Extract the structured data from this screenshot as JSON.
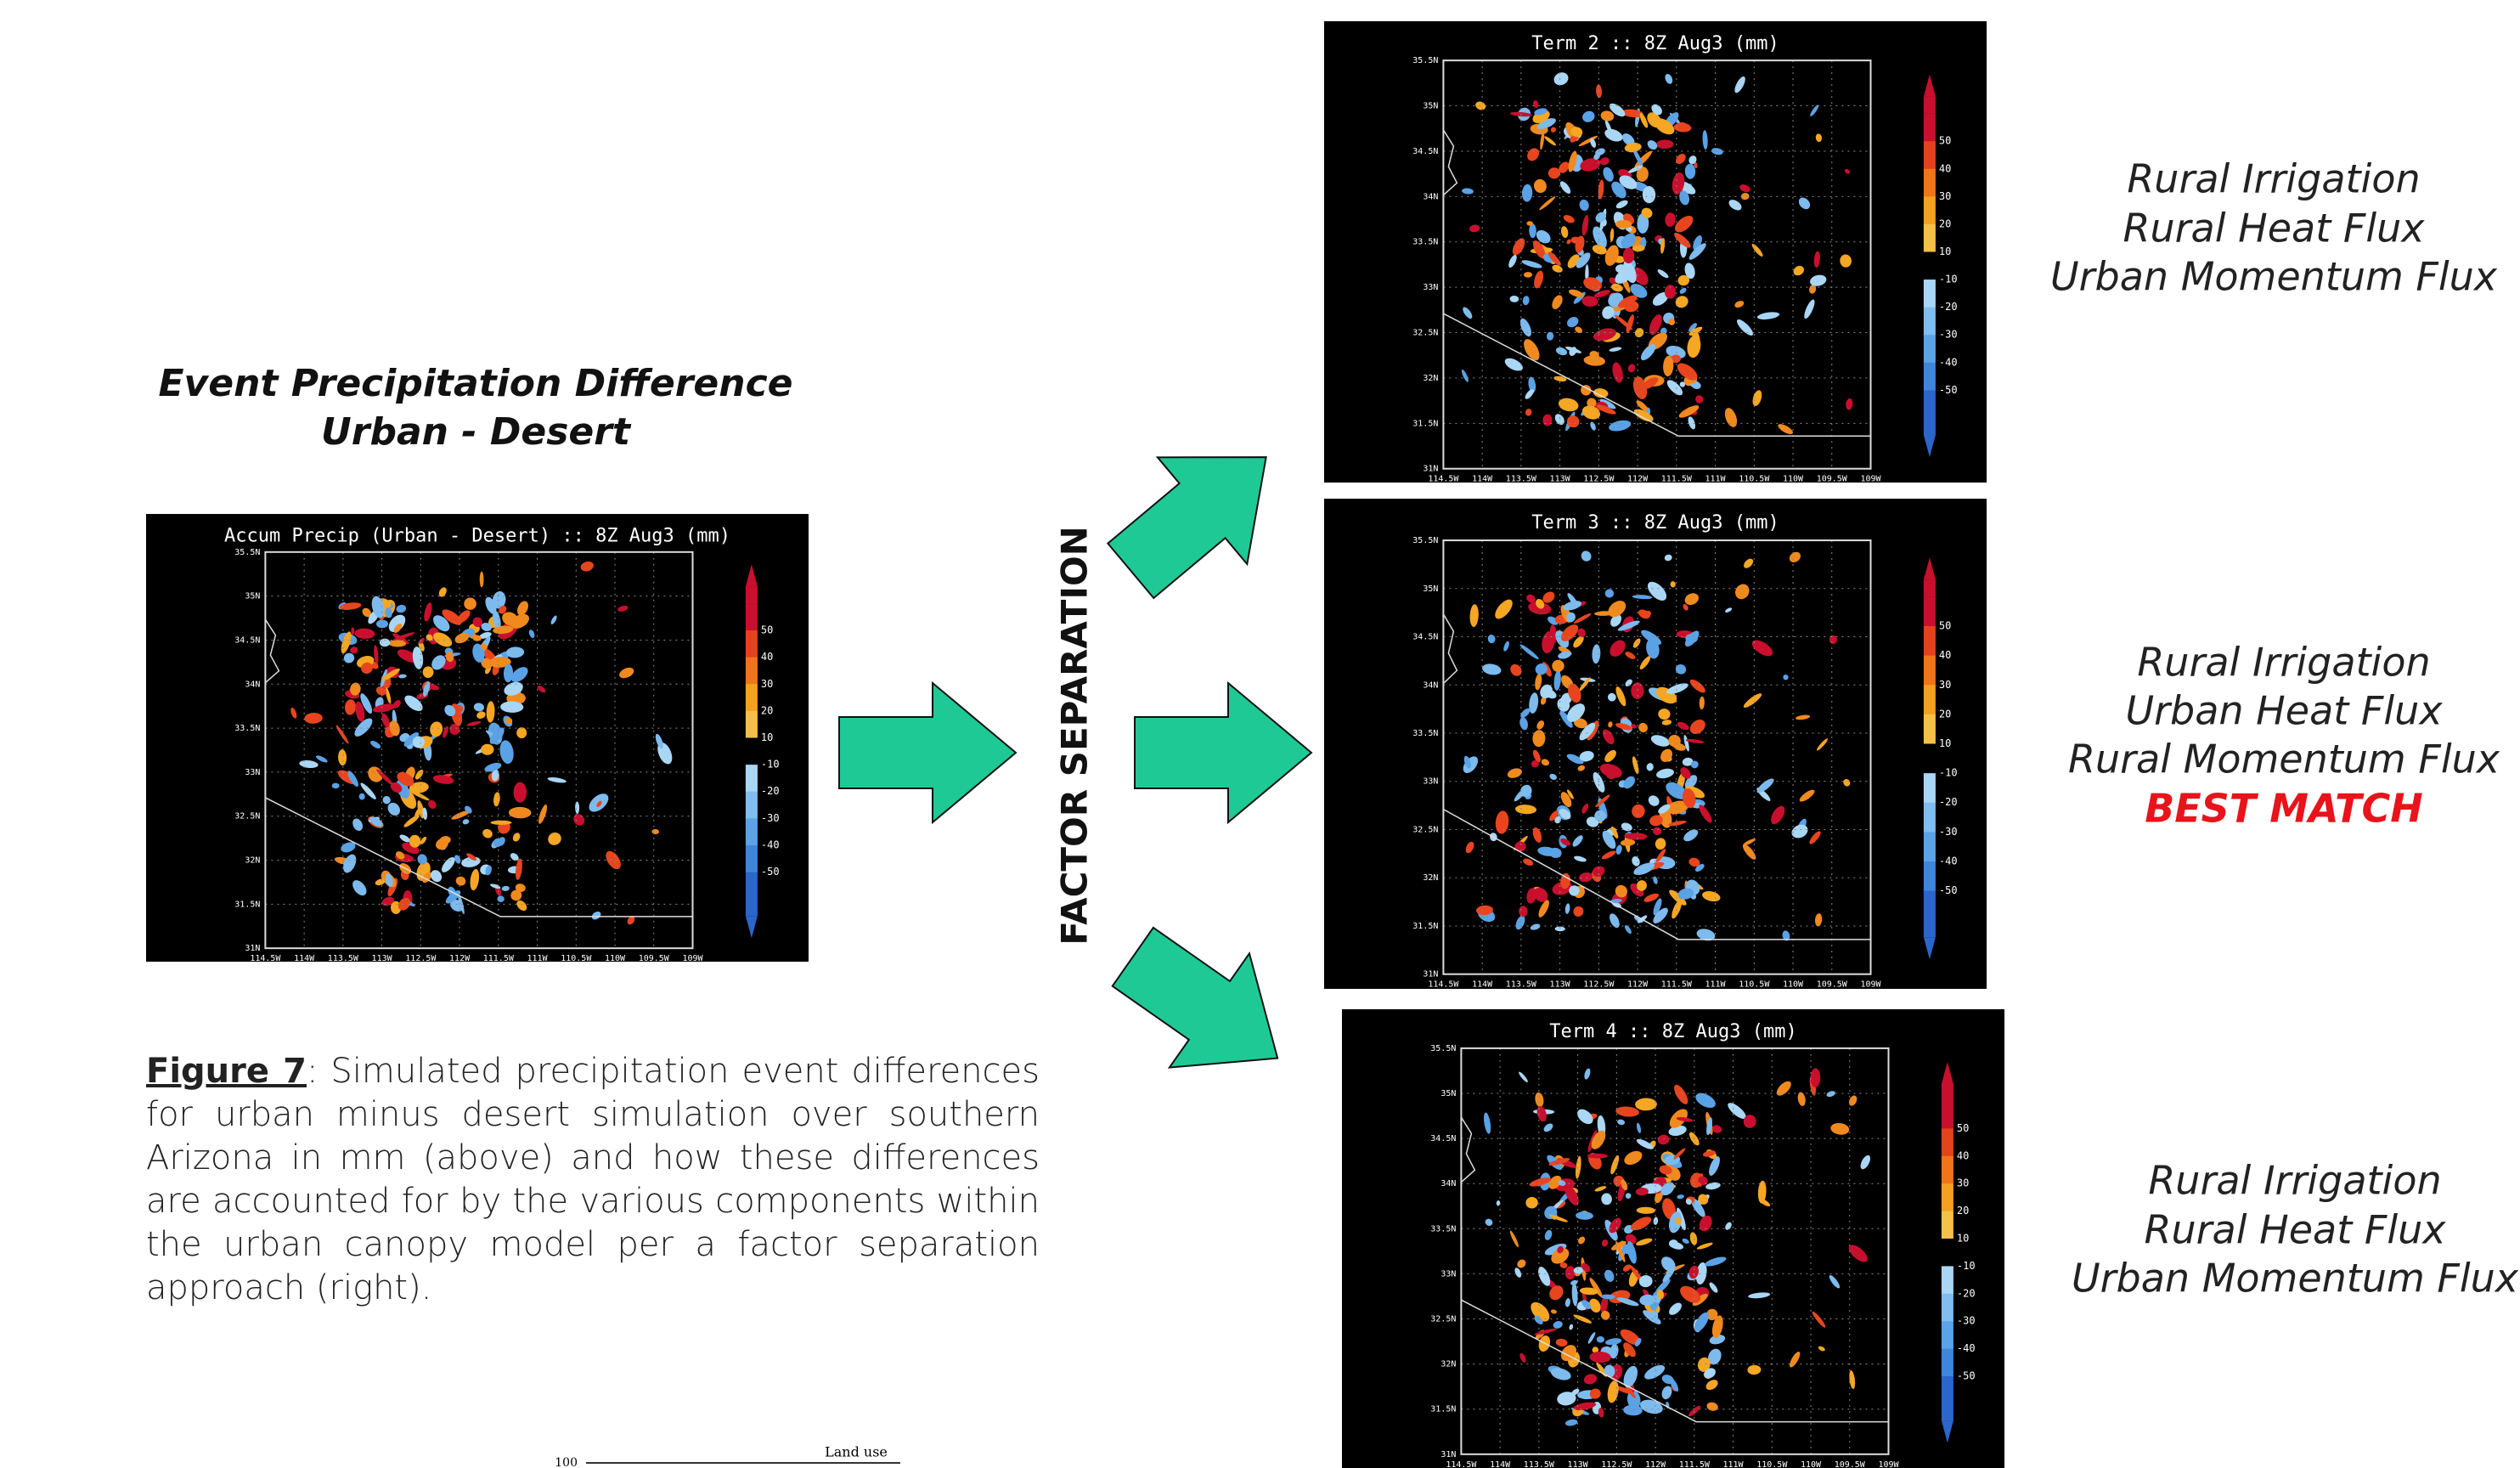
{
  "left_heading": [
    "Event Precipitation Difference",
    "Urban - Desert"
  ],
  "factor_label": "FACTOR SEPARATION",
  "map_axes": {
    "lat_labels": [
      "35.5N",
      "35N",
      "34.5N",
      "34N",
      "33.5N",
      "33N",
      "32.5N",
      "32N",
      "31.5N",
      "31N"
    ],
    "lon_labels": [
      "114.5W",
      "114W",
      "113.5W",
      "113W",
      "112.5W",
      "112W",
      "111.5W",
      "111W",
      "110.5W",
      "110W",
      "109.5W",
      "109W"
    ],
    "colorbar_labels": [
      "50",
      "40",
      "30",
      "20",
      "10",
      "-10",
      "-20",
      "-30",
      "-40",
      "-50"
    ]
  },
  "maps": [
    {
      "title": "Accum Precip (Urban - Desert) :: 8Z Aug3 (mm)"
    },
    {
      "title": "Term 2 :: 8Z Aug3 (mm)"
    },
    {
      "title": "Term 3 :: 8Z Aug3 (mm)"
    },
    {
      "title": "Term 4 :: 8Z Aug3 (mm)"
    }
  ],
  "descriptions": [
    {
      "lines": [
        "Rural Irrigation",
        "Rural Heat Flux",
        "Urban Momentum Flux"
      ]
    },
    {
      "lines": [
        "Rural Irrigation",
        "Urban Heat Flux",
        "Rural Momentum Flux"
      ],
      "highlight": "BEST MATCH"
    },
    {
      "lines": [
        "Rural Irrigation",
        "Rural Heat Flux",
        "Urban Momentum Flux"
      ]
    }
  ],
  "caption": {
    "label": "Figure 7",
    "text": ": Simulated precipitation event differences for urban minus desert simulation over southern Arizona in mm (above) and how these differences are accounted for by the various components within the urban canopy model per a factor separation approach (right)."
  },
  "bottom_fragment": {
    "axis_label": "100",
    "legend_label": "Land use"
  }
}
